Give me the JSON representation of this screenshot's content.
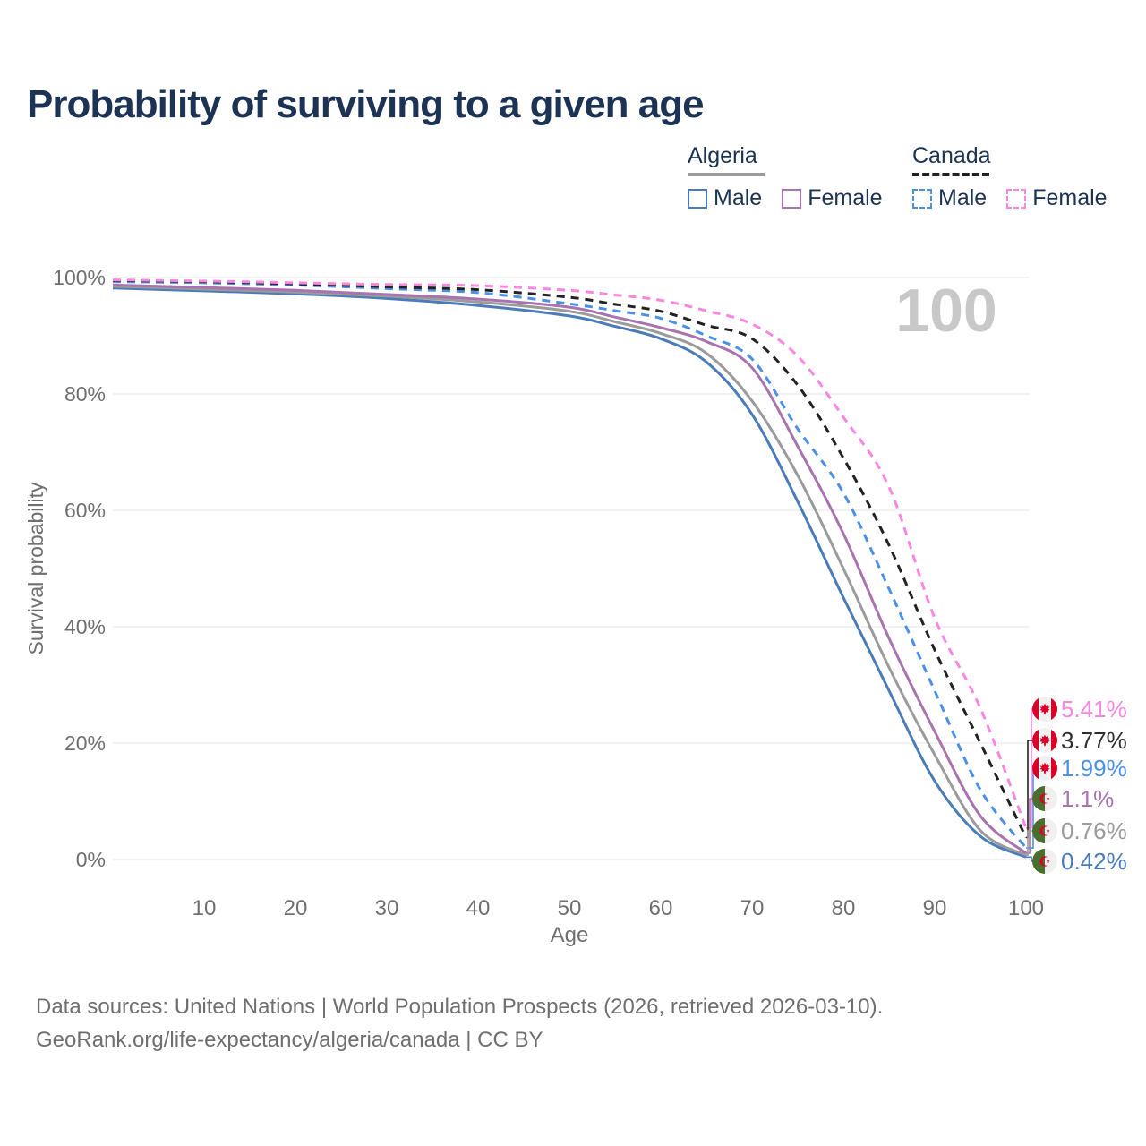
{
  "title": "Probability of surviving to a given age",
  "age_counter": "100",
  "axes": {
    "x_label": "Age",
    "y_label": "Survival probability",
    "x_ticks": [
      "10",
      "20",
      "30",
      "40",
      "50",
      "60",
      "70",
      "80",
      "90",
      "100"
    ],
    "y_ticks": [
      "0%",
      "20%",
      "40%",
      "60%",
      "80%",
      "100%"
    ]
  },
  "legend": {
    "groups": [
      {
        "label": "Algeria",
        "line_style": "solid",
        "rule_color": "#9b9b9b",
        "items": [
          {
            "label": "Male",
            "color": "#4a7cba",
            "dashed": false
          },
          {
            "label": "Female",
            "color": "#a873ae",
            "dashed": false
          }
        ]
      },
      {
        "label": "Canada",
        "line_style": "dashed",
        "rule_color": "#222222",
        "items": [
          {
            "label": "Male",
            "color": "#4a90e8",
            "dashed": true
          },
          {
            "label": "Female",
            "color": "#fb86e1",
            "dashed": true
          }
        ]
      }
    ]
  },
  "chart_data": {
    "type": "line",
    "title": "Probability of surviving to a given age",
    "xlabel": "Age",
    "ylabel": "Survival probability",
    "xlim": [
      0,
      100
    ],
    "ylim": [
      0,
      100
    ],
    "grid": "horizontal-only",
    "legend_position": "top-right",
    "x": [
      0,
      10,
      20,
      30,
      40,
      50,
      55,
      60,
      65,
      70,
      75,
      80,
      85,
      90,
      95,
      100
    ],
    "series": [
      {
        "name": "Algeria Male",
        "country": "algeria",
        "sex": "Male",
        "color": "#4a7cba",
        "dashed": false,
        "end_label": "0.42%",
        "end_value": 0.42,
        "values": [
          98.2,
          97.7,
          97.2,
          96.4,
          95.2,
          93.4,
          91.6,
          89.5,
          85.5,
          76.5,
          61.5,
          45.0,
          29.0,
          13.5,
          4.0,
          0.42
        ]
      },
      {
        "name": "Algeria Both sexes",
        "country": "algeria",
        "sex": "Both",
        "color": "#9b9b9b",
        "dashed": false,
        "end_label": "0.76%",
        "end_value": 0.76,
        "values": [
          98.5,
          98.0,
          97.5,
          96.8,
          95.8,
          94.2,
          92.4,
          90.4,
          87.0,
          78.8,
          66.0,
          50.0,
          33.0,
          18.0,
          5.0,
          0.76
        ]
      },
      {
        "name": "Algeria Female",
        "country": "algeria",
        "sex": "Female",
        "color": "#a873ae",
        "dashed": false,
        "end_label": "1.1%",
        "end_value": 1.1,
        "values": [
          98.7,
          98.3,
          97.8,
          97.1,
          96.3,
          94.9,
          93.2,
          91.4,
          89.0,
          84.5,
          71.0,
          56.0,
          38.0,
          22.0,
          7.5,
          1.1
        ]
      },
      {
        "name": "Canada Male",
        "country": "canada",
        "sex": "Male",
        "color": "#4a90e8",
        "dashed": true,
        "end_label": "1.99%",
        "end_value": 1.99,
        "values": [
          99.3,
          99.1,
          98.7,
          98.1,
          97.4,
          95.5,
          94.3,
          93.0,
          90.0,
          86.0,
          74.0,
          63.0,
          46.5,
          29.0,
          12.0,
          1.99
        ]
      },
      {
        "name": "Canada Both sexes",
        "country": "canada",
        "sex": "Both",
        "color": "#222222",
        "dashed": true,
        "end_label": "3.77%",
        "end_value": 3.77,
        "values": [
          99.5,
          99.3,
          98.9,
          98.4,
          97.9,
          96.6,
          95.4,
          94.2,
          91.8,
          89.5,
          81.5,
          69.0,
          54.0,
          36.0,
          20.0,
          3.77
        ]
      },
      {
        "name": "Canada Female",
        "country": "canada",
        "sex": "Female",
        "color": "#fb86e1",
        "dashed": true,
        "end_label": "5.41%",
        "end_value": 5.41,
        "values": [
          99.6,
          99.4,
          99.1,
          98.8,
          98.6,
          97.8,
          97.0,
          96.1,
          94.3,
          92.0,
          86.5,
          76.0,
          64.0,
          41.5,
          26.0,
          5.41
        ]
      }
    ]
  },
  "footer": {
    "line1": "Data sources: United Nations | World Population Prospects (2026, retrieved 2026-03-10).",
    "line2": "GeoRank.org/life-expectancy/algeria/canada | CC BY"
  },
  "colors": {
    "title_text": "#1d3354",
    "axis_text": "#6f6f6f",
    "gridline": "#e6e6e6",
    "watermark": "#c8c8c8",
    "flag_red": "#d80027",
    "flag_algeria_green": "#496e2d",
    "flag_white": "#f0f0f0"
  }
}
